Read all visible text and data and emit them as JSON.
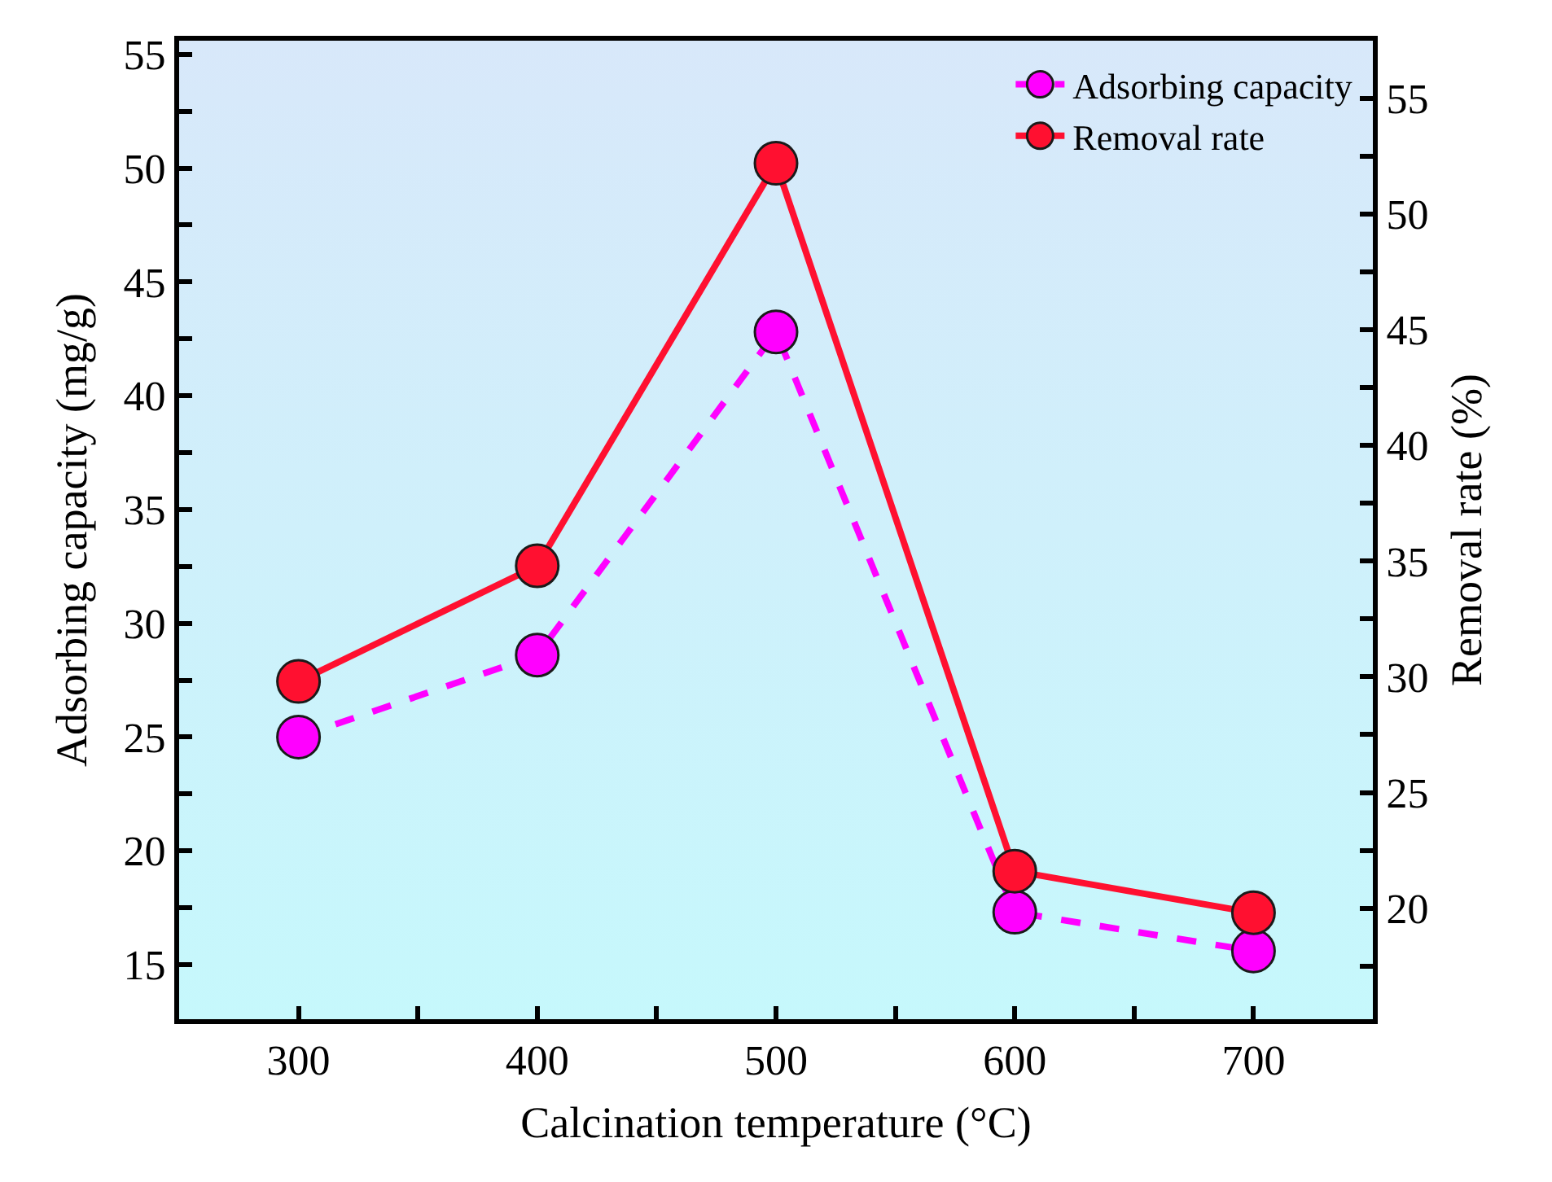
{
  "chart_data": {
    "type": "line",
    "xlabel": "Calcination temperature (°C)",
    "ylabel": "Adsorbing capacity (mg/g)",
    "y2label": "Removal rate (%)",
    "x": [
      300,
      400,
      500,
      600,
      700
    ],
    "series": [
      {
        "name": "Adsorbing capacity",
        "color": "#ff00ff",
        "line_style": "dashed",
        "values": [
          25.0,
          28.6,
          42.8,
          17.3,
          15.6
        ]
      },
      {
        "name": "Removal rate",
        "color": "#ff1030",
        "line_style": "solid",
        "axis": "y2",
        "values": [
          29.8,
          34.8,
          52.2,
          21.6,
          19.8
        ]
      }
    ],
    "xlim": [
      250,
      750
    ],
    "xticks": [
      300,
      {
        "value": 350,
        "label": null
      },
      400,
      {
        "value": 450,
        "label": null
      },
      500,
      {
        "value": 550,
        "label": null
      },
      600,
      {
        "value": 650,
        "label": null
      },
      700
    ],
    "ylim": [
      12.6,
      55.6
    ],
    "yticks": [
      15,
      {
        "value": 17.5,
        "label": null
      },
      20,
      {
        "value": 22.5,
        "label": null
      },
      25,
      {
        "value": 27.5,
        "label": null
      },
      30,
      {
        "value": 32.5,
        "label": null
      },
      35,
      {
        "value": 37.5,
        "label": null
      },
      40,
      {
        "value": 42.5,
        "label": null
      },
      45,
      {
        "value": 47.5,
        "label": null
      },
      50,
      {
        "value": 52.5,
        "label": null
      },
      55
    ],
    "y2lim": [
      15.2,
      57.5
    ],
    "y2ticks": [
      {
        "value": 17.5,
        "label": null
      },
      20,
      {
        "value": 22.5,
        "label": null
      },
      25,
      {
        "value": 27.5,
        "label": null
      },
      30,
      {
        "value": 32.5,
        "label": null
      },
      35,
      {
        "value": 37.5,
        "label": null
      },
      40,
      {
        "value": 42.5,
        "label": null
      },
      45,
      {
        "value": 47.5,
        "label": null
      },
      50,
      {
        "value": 52.5,
        "label": null
      },
      55
    ],
    "marker": "circle",
    "grid": false,
    "legend": "top right"
  }
}
